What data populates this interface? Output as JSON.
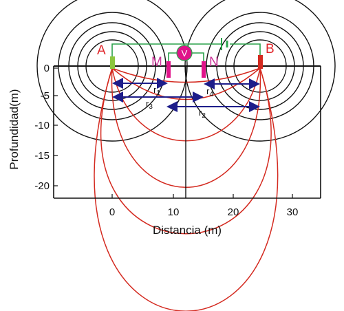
{
  "axes": {
    "xlabel": "Distancia (m)",
    "ylabel": "Profundidad(m)",
    "xticks": [
      "0",
      "10",
      "20",
      "30"
    ],
    "yticks": [
      "0",
      "-5",
      "-10",
      "-15",
      "-20"
    ]
  },
  "electrodes": {
    "A": "A",
    "B": "B",
    "M": "M",
    "N": "N"
  },
  "voltmeter": "V",
  "distances": {
    "r1": "r",
    "r1_sub": "1",
    "r2": "r",
    "r2_sub": "2",
    "r3": "r",
    "r3_sub": "3",
    "r4": "r",
    "r4_sub": "4"
  },
  "colors": {
    "current_lines": "#d42a20",
    "equipotential": "#111111",
    "wire": "#2aa24a",
    "electrode_A": "#8cc63f",
    "electrode_B": "#d42a20",
    "electrode_MN": "#e0138a",
    "distance_arrows": "#1d1d8a",
    "label_A_B": "#e0262b",
    "label_M_N": "#cc3399"
  }
}
